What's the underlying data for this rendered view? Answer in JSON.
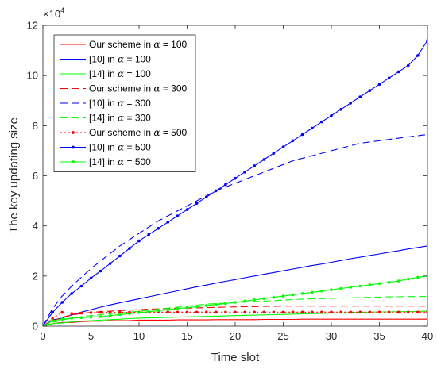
{
  "chart_data": {
    "type": "line",
    "xlabel": "Time slot",
    "ylabel": "The key updating size",
    "y_exponent_label": "×10",
    "y_exponent_power": "4",
    "xlim": [
      0,
      40
    ],
    "ylim": [
      0,
      12
    ],
    "y_scale_multiplier": 10000,
    "xticks": [
      0,
      5,
      10,
      15,
      20,
      25,
      30,
      35,
      40
    ],
    "yticks": [
      0,
      2,
      4,
      6,
      8,
      10,
      12
    ],
    "grid": false,
    "legend_position": "top-left",
    "x": [
      0,
      1,
      2,
      3,
      4,
      5,
      6,
      7,
      8,
      9,
      10,
      11,
      12,
      13,
      14,
      15,
      16,
      17,
      18,
      19,
      20,
      21,
      22,
      23,
      24,
      25,
      26,
      27,
      28,
      29,
      30,
      31,
      32,
      33,
      34,
      35,
      36,
      37,
      38,
      39,
      40
    ],
    "series": [
      {
        "name": "Our scheme in α = 100",
        "color": "#ff0000",
        "style": "solid",
        "marker": "none",
        "values": [
          0,
          0.1,
          0.15,
          0.15,
          0.18,
          0.2,
          0.2,
          0.22,
          0.22,
          0.22,
          0.24,
          0.24,
          0.24,
          0.24,
          0.25,
          0.25,
          0.25,
          0.25,
          0.26,
          0.26,
          0.26,
          0.26,
          0.26,
          0.27,
          0.27,
          0.27,
          0.27,
          0.28,
          0.28,
          0.28,
          0.28,
          0.28,
          0.28,
          0.28,
          0.28,
          0.28,
          0.28,
          0.28,
          0.28,
          0.28,
          0.28
        ]
      },
      {
        "name": "[10] in α = 100",
        "color": "#0000ff",
        "style": "solid",
        "marker": "none",
        "values": [
          0,
          0.25,
          0.32,
          0.45,
          0.56,
          0.66,
          0.76,
          0.85,
          0.93,
          1.01,
          1.09,
          1.17,
          1.25,
          1.33,
          1.41,
          1.49,
          1.57,
          1.64,
          1.72,
          1.79,
          1.86,
          1.93,
          2.0,
          2.07,
          2.14,
          2.21,
          2.28,
          2.35,
          2.42,
          2.48,
          2.55,
          2.62,
          2.69,
          2.75,
          2.82,
          2.88,
          2.95,
          3.01,
          3.08,
          3.14,
          3.2
        ]
      },
      {
        "name": "[14] in α = 100",
        "color": "#00ff00",
        "style": "solid",
        "marker": "none",
        "values": [
          0,
          0.1,
          0.13,
          0.17,
          0.2,
          0.22,
          0.24,
          0.26,
          0.28,
          0.3,
          0.32,
          0.33,
          0.34,
          0.35,
          0.36,
          0.37,
          0.38,
          0.39,
          0.4,
          0.41,
          0.42,
          0.43,
          0.44,
          0.45,
          0.46,
          0.47,
          0.48,
          0.49,
          0.5,
          0.51,
          0.52,
          0.53,
          0.54,
          0.55,
          0.56,
          0.57,
          0.57,
          0.58,
          0.58,
          0.59,
          0.6
        ]
      },
      {
        "name": "Our scheme in α = 300",
        "color": "#ff0000",
        "style": "dashed",
        "marker": "none",
        "values": [
          0,
          0.2,
          0.35,
          0.45,
          0.5,
          0.55,
          0.58,
          0.6,
          0.62,
          0.64,
          0.66,
          0.68,
          0.69,
          0.7,
          0.71,
          0.72,
          0.73,
          0.74,
          0.75,
          0.76,
          0.77,
          0.78,
          0.78,
          0.79,
          0.79,
          0.8,
          0.8,
          0.8,
          0.8,
          0.8,
          0.8,
          0.8,
          0.8,
          0.8,
          0.8,
          0.8,
          0.8,
          0.8,
          0.8,
          0.8,
          0.8
        ]
      },
      {
        "name": "[10] in α = 300",
        "color": "#0000ff",
        "style": "dashed",
        "marker": "none",
        "values": [
          0,
          0.7,
          1.2,
          1.6,
          1.95,
          2.3,
          2.6,
          2.9,
          3.2,
          3.45,
          3.7,
          3.95,
          4.2,
          4.4,
          4.6,
          4.8,
          5.0,
          5.2,
          5.4,
          5.55,
          5.7,
          5.85,
          6.0,
          6.15,
          6.3,
          6.45,
          6.6,
          6.7,
          6.8,
          6.9,
          7.0,
          7.1,
          7.2,
          7.3,
          7.35,
          7.4,
          7.45,
          7.5,
          7.55,
          7.6,
          7.65
        ]
      },
      {
        "name": "[14] in α = 300",
        "color": "#00ff00",
        "style": "dashed",
        "marker": "none",
        "values": [
          0,
          0.15,
          0.25,
          0.32,
          0.38,
          0.42,
          0.46,
          0.5,
          0.53,
          0.56,
          0.6,
          0.64,
          0.68,
          0.72,
          0.76,
          0.8,
          0.84,
          0.88,
          0.9,
          0.92,
          0.94,
          0.96,
          0.98,
          1.0,
          1.02,
          1.04,
          1.06,
          1.08,
          1.09,
          1.1,
          1.11,
          1.12,
          1.13,
          1.14,
          1.15,
          1.16,
          1.17,
          1.17,
          1.18,
          1.18,
          1.19
        ]
      },
      {
        "name": "Our scheme in α = 500",
        "color": "#ff0000",
        "style": "dotted-line",
        "marker": "dot",
        "values": [
          0,
          0.3,
          0.55,
          0.5,
          0.52,
          0.54,
          0.55,
          0.55,
          0.55,
          0.55,
          0.56,
          0.56,
          0.56,
          0.56,
          0.56,
          0.56,
          0.56,
          0.56,
          0.56,
          0.56,
          0.56,
          0.56,
          0.56,
          0.56,
          0.56,
          0.56,
          0.56,
          0.56,
          0.56,
          0.56,
          0.56,
          0.56,
          0.56,
          0.56,
          0.56,
          0.56,
          0.56,
          0.56,
          0.56,
          0.56,
          0.56
        ]
      },
      {
        "name": "[10] in α = 500",
        "color": "#0000ff",
        "style": "solid",
        "marker": "dot",
        "values": [
          0,
          0.55,
          0.95,
          1.3,
          1.6,
          1.92,
          2.2,
          2.5,
          2.8,
          3.1,
          3.4,
          3.65,
          3.9,
          4.15,
          4.4,
          4.65,
          4.9,
          5.15,
          5.4,
          5.65,
          5.9,
          6.15,
          6.4,
          6.65,
          6.9,
          7.15,
          7.4,
          7.65,
          7.9,
          8.15,
          8.4,
          8.65,
          8.9,
          9.15,
          9.4,
          9.65,
          9.9,
          10.15,
          10.4,
          10.8,
          11.4
        ]
      },
      {
        "name": "[14] in α = 500",
        "color": "#00ff00",
        "style": "solid",
        "marker": "dot",
        "values": [
          0,
          0.22,
          0.28,
          0.32,
          0.34,
          0.36,
          0.38,
          0.42,
          0.46,
          0.5,
          0.54,
          0.58,
          0.62,
          0.66,
          0.7,
          0.74,
          0.78,
          0.82,
          0.86,
          0.9,
          0.95,
          1.0,
          1.05,
          1.1,
          1.15,
          1.2,
          1.25,
          1.3,
          1.35,
          1.4,
          1.45,
          1.5,
          1.55,
          1.6,
          1.65,
          1.7,
          1.75,
          1.8,
          1.88,
          1.95,
          2.0
        ]
      }
    ]
  }
}
